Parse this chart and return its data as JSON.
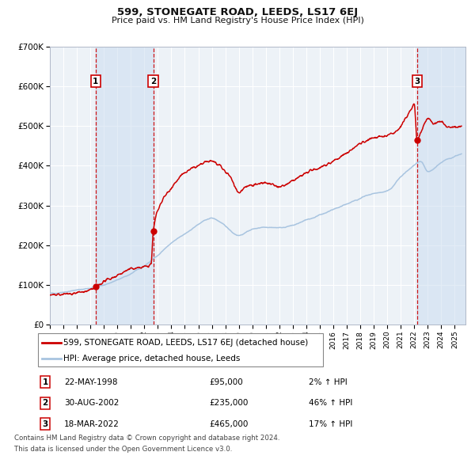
{
  "title": "599, STONEGATE ROAD, LEEDS, LS17 6EJ",
  "subtitle": "Price paid vs. HM Land Registry's House Price Index (HPI)",
  "ylim": [
    0,
    700000
  ],
  "yticks": [
    0,
    100000,
    200000,
    300000,
    400000,
    500000,
    600000,
    700000
  ],
  "ytick_labels": [
    "£0",
    "£100K",
    "£200K",
    "£300K",
    "£400K",
    "£500K",
    "£600K",
    "£700K"
  ],
  "xlim_start": 1995.0,
  "xlim_end": 2025.8,
  "background_color": "#ffffff",
  "plot_bg_color": "#edf2f7",
  "grid_color": "#ffffff",
  "hpi_line_color": "#a8c4e0",
  "price_line_color": "#cc0000",
  "sale_marker_color": "#cc0000",
  "dashed_line_color": "#cc0000",
  "shade_color": "#ccddf0",
  "legend_label_price": "599, STONEGATE ROAD, LEEDS, LS17 6EJ (detached house)",
  "legend_label_hpi": "HPI: Average price, detached house, Leeds",
  "sale1_date": 1998.39,
  "sale1_price": 95000,
  "sale1_label": "1",
  "sale1_text": "22-MAY-1998",
  "sale1_amount": "£95,000",
  "sale1_pct": "2% ↑ HPI",
  "sale2_date": 2002.66,
  "sale2_price": 235000,
  "sale2_label": "2",
  "sale2_text": "30-AUG-2002",
  "sale2_amount": "£235,000",
  "sale2_pct": "46% ↑ HPI",
  "sale3_date": 2022.21,
  "sale3_price": 465000,
  "sale3_label": "3",
  "sale3_text": "18-MAR-2022",
  "sale3_amount": "£465,000",
  "sale3_pct": "17% ↑ HPI",
  "footnote1": "Contains HM Land Registry data © Crown copyright and database right 2024.",
  "footnote2": "This data is licensed under the Open Government Licence v3.0."
}
